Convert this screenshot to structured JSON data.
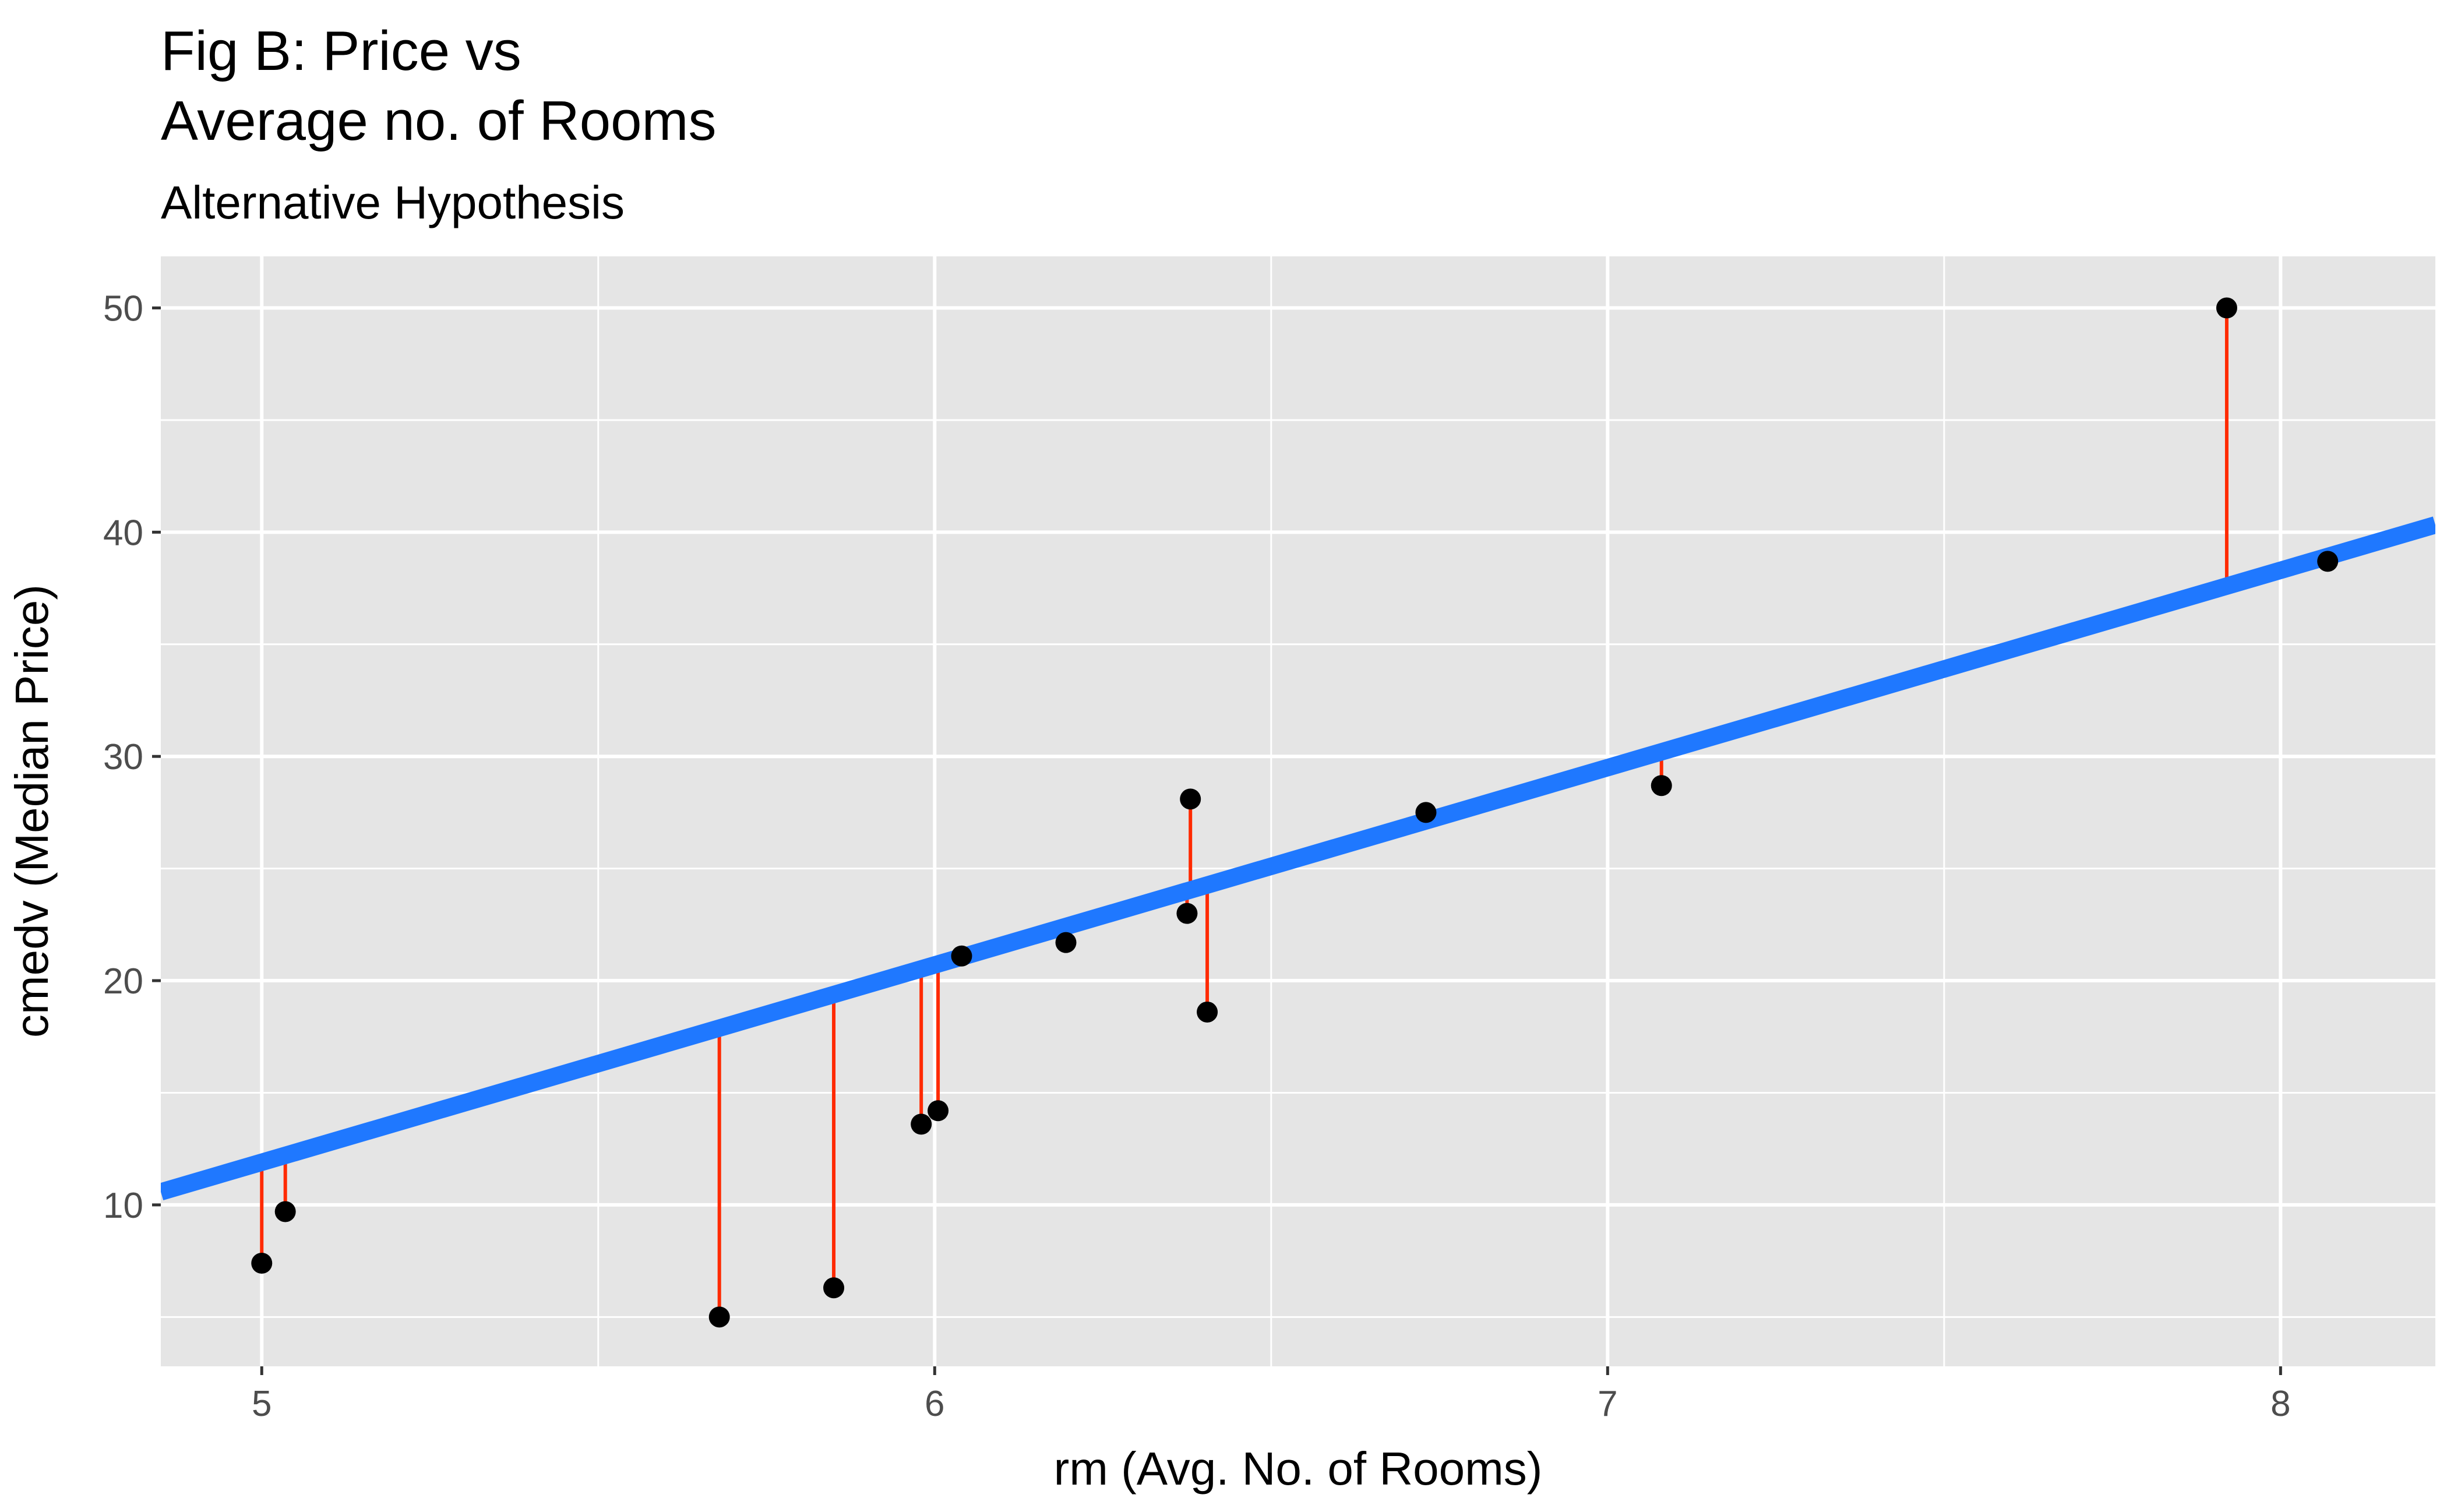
{
  "chart_data": {
    "type": "scatter",
    "title_lines": [
      "Fig B: Price vs",
      "Average no. of Rooms"
    ],
    "subtitle": "Alternative Hypothesis",
    "xlabel": "rm (Avg. No. of Rooms)",
    "ylabel": "cmedv (Median Price)",
    "xlim": [
      4.85,
      8.23
    ],
    "ylim": [
      2.8,
      52.3
    ],
    "x_ticks": [
      5,
      6,
      7,
      8
    ],
    "y_ticks": [
      10,
      20,
      30,
      40,
      50
    ],
    "grid": true,
    "legend": "none",
    "points": [
      {
        "x": 5.0,
        "y": 7.4
      },
      {
        "x": 5.035,
        "y": 9.7
      },
      {
        "x": 5.68,
        "y": 5.0
      },
      {
        "x": 5.85,
        "y": 6.3
      },
      {
        "x": 5.98,
        "y": 13.6
      },
      {
        "x": 6.005,
        "y": 14.2
      },
      {
        "x": 6.04,
        "y": 21.1
      },
      {
        "x": 6.195,
        "y": 21.7
      },
      {
        "x": 6.375,
        "y": 23.0
      },
      {
        "x": 6.38,
        "y": 28.1
      },
      {
        "x": 6.405,
        "y": 18.6
      },
      {
        "x": 6.73,
        "y": 27.5
      },
      {
        "x": 7.08,
        "y": 28.7
      },
      {
        "x": 7.92,
        "y": 50.0
      },
      {
        "x": 8.07,
        "y": 38.7
      }
    ],
    "fit_line": {
      "intercept": -32.1,
      "slope": 8.8
    },
    "colors": {
      "panel": "#e5e5e5",
      "grid": "#ffffff",
      "point": "#000000",
      "fit": "#1f78ff",
      "residual": "#ff2a00"
    }
  }
}
